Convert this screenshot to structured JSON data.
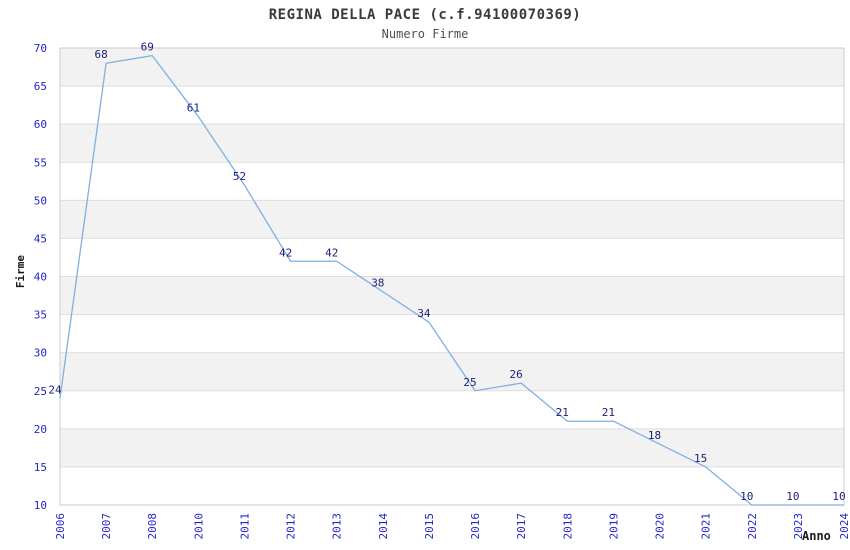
{
  "chart_data": {
    "type": "line",
    "title": "REGINA DELLA PACE (c.f.94100070369)",
    "subtitle": "Numero Firme",
    "xlabel": "Anno",
    "ylabel": "Firme",
    "categories": [
      "2006",
      "2007",
      "2008",
      "2010",
      "2011",
      "2012",
      "2013",
      "2014",
      "2015",
      "2016",
      "2017",
      "2018",
      "2019",
      "2020",
      "2021",
      "2022",
      "2023",
      "2024"
    ],
    "values": [
      24,
      68,
      69,
      61,
      52,
      42,
      42,
      38,
      34,
      25,
      26,
      21,
      21,
      18,
      15,
      10,
      10,
      10
    ],
    "ylim": [
      10,
      70
    ],
    "ytick_step": 5,
    "grid": "horizontal-alternating-bands",
    "legend": "none",
    "colors": {
      "line": "#7fb0e2",
      "axis_tick_label": "#2424cc",
      "data_label": "#1c1c78",
      "band_gray": "#f2f2f2",
      "band_white": "#ffffff",
      "gridline": "#dedede",
      "plot_border": "#cccccc",
      "title_text": "#3a3a3a"
    }
  }
}
